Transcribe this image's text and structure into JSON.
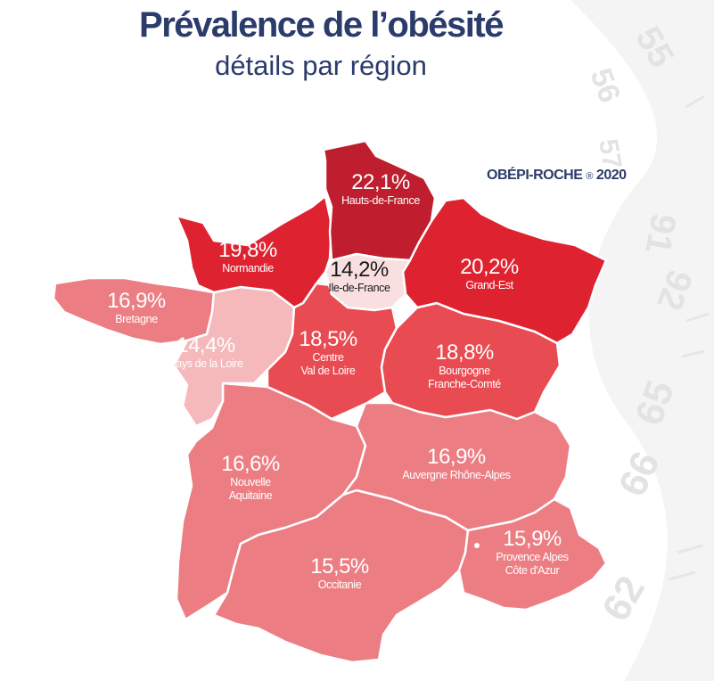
{
  "header": {
    "title": "Prévalence de l’obésité",
    "subtitle": "détails par région"
  },
  "source": {
    "label": "OBÉPI-ROCHE",
    "registered": "®",
    "year": "2020"
  },
  "colors": {
    "darkest": "#be1e2d",
    "dark": "#df2230",
    "medium": "#e94b52",
    "light": "#ec7e83",
    "pale": "#f5b8bb",
    "palest": "#f9dfe0",
    "title": "#2b3b6b"
  },
  "regions": [
    {
      "id": "hauts-de-france",
      "name_lines": [
        "Hauts-de-France"
      ],
      "value": "22,1%",
      "prevalence": 22.1
    },
    {
      "id": "normandie",
      "name_lines": [
        "Normandie"
      ],
      "value": "19,8%",
      "prevalence": 19.8
    },
    {
      "id": "ile-de-france",
      "name_lines": [
        "Ile-de-France"
      ],
      "value": "14,2%",
      "prevalence": 14.2
    },
    {
      "id": "grand-est",
      "name_lines": [
        "Grand-Est"
      ],
      "value": "20,2%",
      "prevalence": 20.2
    },
    {
      "id": "bretagne",
      "name_lines": [
        "Bretagne"
      ],
      "value": "16,9%",
      "prevalence": 16.9
    },
    {
      "id": "pays-de-la-loire",
      "name_lines": [
        "Pays de la Loire"
      ],
      "value": "14,4%",
      "prevalence": 14.4
    },
    {
      "id": "centre-val-de-loire",
      "name_lines": [
        "Centre",
        "Val de Loire"
      ],
      "value": "18,5%",
      "prevalence": 18.5
    },
    {
      "id": "bourgogne-franche-comte",
      "name_lines": [
        "Bourgogne",
        "Franche-Comté"
      ],
      "value": "18,8%",
      "prevalence": 18.8
    },
    {
      "id": "nouvelle-aquitaine",
      "name_lines": [
        "Nouvelle",
        "Aquitaine"
      ],
      "value": "16,6%",
      "prevalence": 16.6
    },
    {
      "id": "auvergne-rhone-alpes",
      "name_lines": [
        "Auvergne Rhône-Alpes"
      ],
      "value": "16,9%",
      "prevalence": 16.9
    },
    {
      "id": "occitanie",
      "name_lines": [
        "Occitanie"
      ],
      "value": "15,5%",
      "prevalence": 15.5
    },
    {
      "id": "provence-alpes-cote-dazur",
      "name_lines": [
        "Provence Alpes",
        "Côte d'Azur"
      ],
      "value": "15,9%",
      "prevalence": 15.9
    }
  ],
  "tape": {
    "numbers": [
      "55",
      "56",
      "57",
      "91",
      "92",
      "65",
      "66",
      "62"
    ]
  }
}
